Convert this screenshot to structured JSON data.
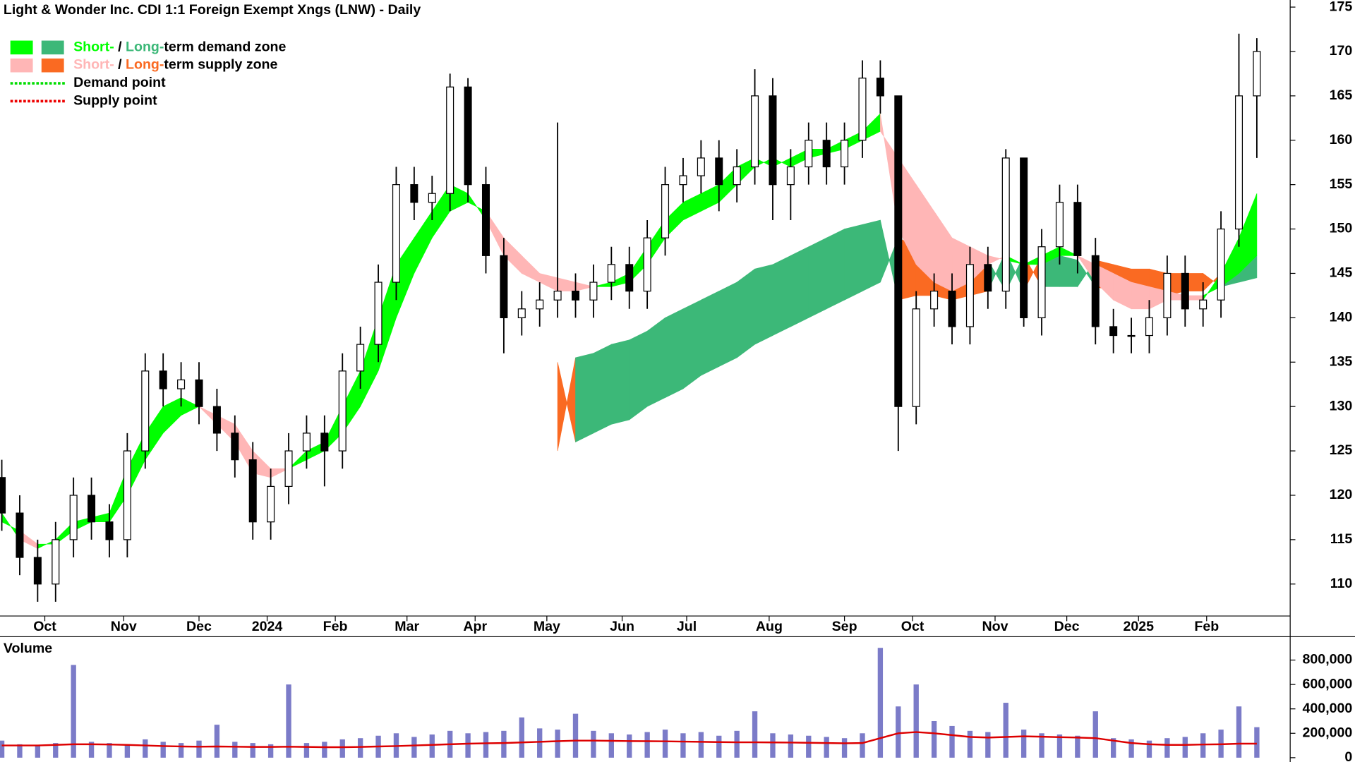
{
  "chart_data": {
    "type": "candlestick",
    "title": "Light & Wonder Inc. CDI 1:1 Foreign Exempt Xngs (LNW) - Daily",
    "legend": [
      {
        "parts": [
          "Short-",
          " / ",
          "Long-",
          "term demand zone"
        ],
        "colors": [
          "#00ff00",
          "#3cb878"
        ]
      },
      {
        "parts": [
          "Short-",
          " / ",
          "Long-",
          "term supply zone"
        ],
        "colors": [
          "#ffb6b6",
          "#fa6a22"
        ]
      },
      {
        "parts": [
          "Demand point"
        ],
        "colors": [
          "#00dd00"
        ]
      },
      {
        "parts": [
          "Supply point"
        ],
        "colors": [
          "#ee0000"
        ]
      }
    ],
    "legend_position": "upper left",
    "xlim": [
      -0.5,
      359.3
    ],
    "xticks": [
      {
        "value": 12,
        "label": "Oct"
      },
      {
        "value": 34,
        "label": "Nov"
      },
      {
        "value": 55,
        "label": "Dec"
      },
      {
        "value": 74,
        "label": "2024"
      },
      {
        "value": 93,
        "label": "Feb"
      },
      {
        "value": 113,
        "label": "Mar"
      },
      {
        "value": 132,
        "label": "Apr"
      },
      {
        "value": 152,
        "label": "May"
      },
      {
        "value": 173,
        "label": "Jun"
      },
      {
        "value": 191,
        "label": "Jul"
      },
      {
        "value": 214,
        "label": "Aug"
      },
      {
        "value": 235,
        "label": "Sep"
      },
      {
        "value": 254,
        "label": "Oct"
      },
      {
        "value": 277,
        "label": "Nov"
      },
      {
        "value": 297,
        "label": "Dec"
      },
      {
        "value": 317,
        "label": "2025"
      },
      {
        "value": 336,
        "label": "Feb"
      }
    ],
    "ylim": [
      106.4,
      175.8
    ],
    "yticks": [
      110,
      115,
      120,
      125,
      130,
      135,
      140,
      145,
      150,
      155,
      160,
      165,
      170,
      175
    ],
    "x": [
      0,
      5,
      10,
      15,
      20,
      25,
      30,
      35,
      40,
      45,
      50,
      55,
      60,
      65,
      70,
      75,
      80,
      85,
      90,
      95,
      100,
      105,
      110,
      115,
      120,
      125,
      130,
      135,
      140,
      145,
      150,
      155,
      160,
      165,
      170,
      175,
      180,
      185,
      190,
      195,
      200,
      205,
      210,
      215,
      220,
      225,
      230,
      235,
      240,
      245,
      250,
      255,
      260,
      265,
      270,
      275,
      280,
      285,
      290,
      295,
      300,
      305,
      310,
      315,
      320,
      325,
      330,
      335,
      340,
      345,
      350
    ],
    "open": [
      122,
      118,
      113,
      110,
      115,
      120,
      117,
      115,
      125,
      134,
      132,
      133,
      130,
      127,
      124,
      117,
      121,
      125,
      127,
      125,
      134,
      137,
      144,
      155,
      153,
      154,
      166,
      155,
      147,
      140,
      141,
      142,
      143,
      142,
      144,
      146,
      143,
      149,
      155,
      156,
      158,
      155,
      157,
      165,
      155,
      157,
      160,
      157,
      160,
      167,
      165,
      130,
      141,
      143,
      139,
      146,
      143,
      158,
      140,
      148,
      153,
      147,
      139,
      138,
      138,
      140,
      145,
      141,
      142,
      150,
      165
    ],
    "high": [
      124,
      120,
      115,
      117,
      122,
      122,
      119,
      127,
      136,
      136,
      135,
      135,
      132,
      129,
      126,
      123,
      127,
      129,
      129,
      136,
      139,
      146,
      157,
      157,
      156,
      167.5,
      167,
      157,
      149,
      143,
      144,
      162,
      145,
      146,
      148,
      148,
      151,
      157,
      158,
      160,
      160,
      159,
      168,
      167,
      159,
      162,
      162,
      162,
      169,
      169,
      165,
      143,
      145,
      145,
      148,
      148,
      159,
      158,
      150,
      155,
      155,
      149,
      141,
      140,
      142,
      147,
      147,
      144,
      152,
      172,
      171.5
    ],
    "low": [
      116,
      111,
      108,
      108,
      113,
      115,
      113,
      113,
      123,
      130,
      130,
      128,
      125,
      122,
      115,
      115,
      119,
      123,
      121,
      123,
      132,
      135,
      142,
      151,
      151,
      152,
      153,
      145,
      136,
      138,
      139,
      140,
      140,
      140,
      142,
      141,
      141,
      147,
      153,
      154,
      152,
      153,
      155,
      151,
      151,
      155,
      155,
      155,
      158,
      163,
      125,
      128,
      139,
      137,
      137,
      141,
      141,
      139,
      138,
      146,
      145,
      137,
      136,
      136,
      136,
      138,
      139,
      139,
      140,
      148,
      158
    ],
    "close": [
      118,
      113,
      110,
      115,
      120,
      117,
      115,
      125,
      134,
      132,
      133,
      130,
      127,
      124,
      117,
      121,
      125,
      127,
      125,
      134,
      137,
      144,
      155,
      153,
      154,
      166,
      155,
      147,
      140,
      141,
      142,
      143,
      142,
      144,
      146,
      143,
      149,
      155,
      156,
      158,
      155,
      157,
      165,
      155,
      157,
      160,
      157,
      160,
      167,
      165,
      130,
      141,
      143,
      139,
      146,
      143,
      158,
      140,
      148,
      153,
      147,
      139,
      138,
      138,
      140,
      145,
      141,
      142,
      150,
      165,
      170
    ],
    "up_color": "#ffffff",
    "down_color": "#000000",
    "short_zone": {
      "fast": [
        118,
        115,
        114,
        115,
        117,
        117.5,
        118,
        123,
        127,
        130,
        131,
        130,
        128,
        126,
        122.5,
        122,
        123,
        125,
        126,
        130,
        134,
        140,
        146,
        149,
        152,
        155,
        154,
        151,
        147,
        145,
        144,
        143,
        143,
        143.5,
        144,
        145,
        148,
        151,
        153,
        154,
        155,
        157,
        158,
        157,
        158,
        159,
        159,
        160,
        161,
        163,
        150,
        146,
        144,
        143,
        144,
        146,
        147,
        146,
        147,
        148,
        147,
        144,
        142,
        141,
        141,
        142,
        142,
        142,
        145,
        149,
        154
      ],
      "slow": [
        117,
        116,
        114.5,
        114.5,
        116,
        117,
        117,
        120,
        124,
        127,
        129,
        130,
        129,
        128,
        125,
        123,
        123,
        124,
        125,
        127,
        130,
        134,
        140,
        145,
        149,
        152,
        153,
        152,
        149,
        147,
        145,
        144.5,
        144,
        143.5,
        143.5,
        144,
        146,
        149,
        151,
        152,
        153,
        155,
        157,
        158,
        157,
        158,
        158.5,
        159,
        160,
        161,
        158,
        155,
        152,
        149,
        148,
        147,
        146.5,
        146,
        146,
        147,
        147,
        146,
        145,
        144,
        143.5,
        143,
        142.5,
        142.5,
        143.5,
        145,
        147
      ],
      "demand_color": "#00ff00",
      "supply_color": "#ffb6b6"
    },
    "long_zone": {
      "fast": [
        null,
        null,
        null,
        null,
        null,
        null,
        null,
        null,
        null,
        null,
        null,
        null,
        null,
        null,
        null,
        null,
        null,
        null,
        null,
        null,
        null,
        null,
        null,
        null,
        null,
        null,
        null,
        null,
        null,
        null,
        null,
        125,
        135.5,
        136,
        137,
        137.5,
        138.5,
        140,
        141,
        142,
        143,
        144,
        145.5,
        146,
        147,
        148,
        149,
        150,
        150.5,
        151,
        142,
        142.5,
        142.5,
        142,
        142.5,
        143,
        147.5,
        143,
        147,
        147,
        146.5,
        143.5,
        143,
        142.5,
        142.5,
        142.5,
        143,
        143,
        145,
        146,
        147
      ],
      "slow": [
        null,
        null,
        null,
        null,
        null,
        null,
        null,
        null,
        null,
        null,
        null,
        null,
        null,
        null,
        null,
        null,
        null,
        null,
        null,
        null,
        null,
        null,
        null,
        null,
        null,
        null,
        null,
        null,
        null,
        null,
        null,
        135,
        126,
        127,
        128,
        128.5,
        130,
        131,
        132,
        133.5,
        134.5,
        135.5,
        137,
        138,
        139,
        140,
        141,
        142,
        143,
        144,
        149,
        148,
        147.5,
        147,
        147,
        146.5,
        143,
        147,
        143.5,
        143.5,
        143.5,
        146.5,
        146,
        145.5,
        145.5,
        145,
        145,
        145,
        143.5,
        144,
        144.5
      ],
      "demand_color": "#3cb878",
      "supply_color": "#fa6a22"
    },
    "volume": {
      "label": "Volume",
      "color": "#7b7bc8",
      "ylim": [
        0,
        970000
      ],
      "yticks": [
        0,
        {
          "value": 200000,
          "label": "200,000"
        },
        {
          "value": 400000,
          "label": "400,000"
        },
        {
          "value": 600000,
          "label": "600,000"
        },
        {
          "value": 800000,
          "label": "800,000"
        }
      ],
      "values": [
        140000,
        110000,
        100000,
        120000,
        760000,
        130000,
        120000,
        110000,
        150000,
        130000,
        120000,
        140000,
        270000,
        130000,
        120000,
        110000,
        600000,
        120000,
        130000,
        150000,
        160000,
        180000,
        200000,
        170000,
        190000,
        220000,
        200000,
        210000,
        220000,
        330000,
        240000,
        230000,
        360000,
        220000,
        200000,
        190000,
        210000,
        230000,
        200000,
        210000,
        180000,
        220000,
        380000,
        200000,
        190000,
        180000,
        170000,
        160000,
        200000,
        900000,
        420000,
        600000,
        300000,
        260000,
        220000,
        210000,
        450000,
        230000,
        200000,
        190000,
        180000,
        380000,
        160000,
        150000,
        140000,
        160000,
        170000,
        200000,
        230000,
        420000,
        250000
      ],
      "average": [
        100000,
        100000,
        100000,
        105000,
        110000,
        110000,
        108000,
        105000,
        100000,
        95000,
        92000,
        90000,
        92000,
        90000,
        88000,
        88000,
        90000,
        88000,
        86000,
        86000,
        88000,
        92000,
        95000,
        100000,
        105000,
        110000,
        115000,
        118000,
        120000,
        125000,
        130000,
        135000,
        140000,
        140000,
        138000,
        136000,
        135000,
        134000,
        132000,
        130000,
        128000,
        126000,
        126000,
        125000,
        124000,
        122000,
        120000,
        118000,
        120000,
        160000,
        200000,
        210000,
        200000,
        185000,
        170000,
        165000,
        170000,
        175000,
        172000,
        168000,
        165000,
        160000,
        140000,
        120000,
        110000,
        105000,
        105000,
        108000,
        110000,
        115000,
        115000
      ],
      "average_color": "#dd0000"
    }
  }
}
